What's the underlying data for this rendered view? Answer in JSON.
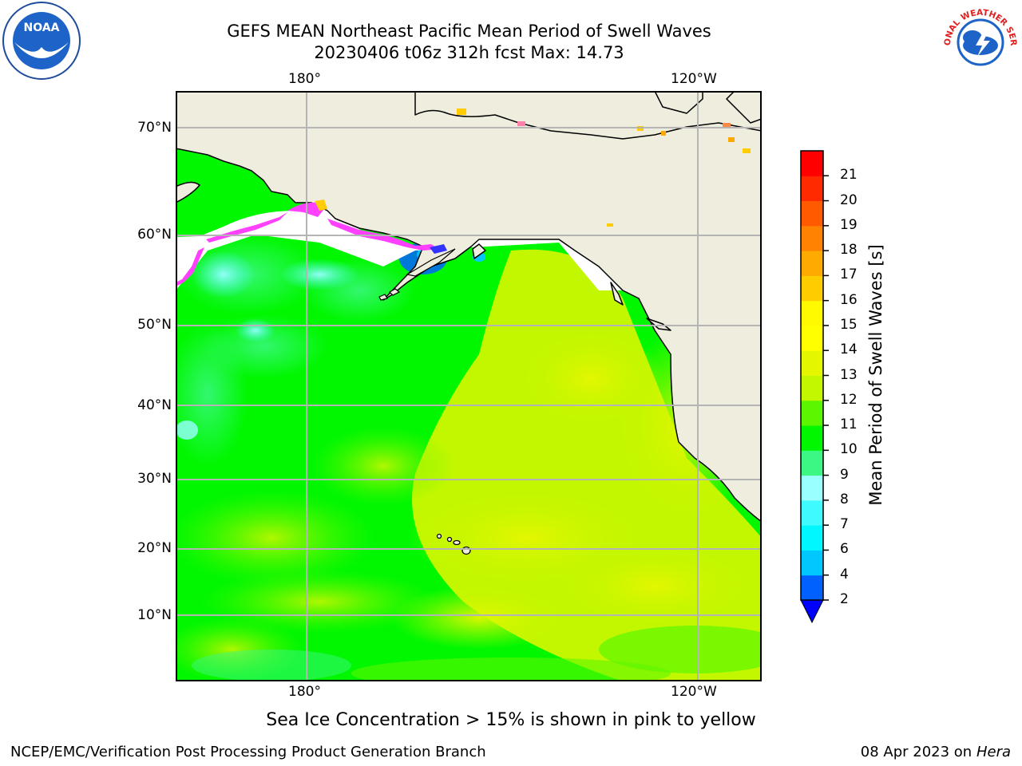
{
  "title": {
    "line1": "GEFS MEAN Northeast Pacific Mean Period of Swell Waves",
    "line2": "20230406 t06z 312h fcst   Max: 14.73"
  },
  "map": {
    "lon_labels": [
      "180°",
      "120°W"
    ],
    "lat_labels": [
      "70°N",
      "60°N",
      "50°N",
      "40°N",
      "30°N",
      "20°N",
      "10°N"
    ],
    "colors": {
      "land": "#efedde",
      "grid": "#b4b4b4",
      "coast": "#000000",
      "ice": "#ffffff"
    }
  },
  "colorbar": {
    "title": "Mean Period of Swell Waves [s]",
    "levels": [
      "2",
      "4",
      "6",
      "7",
      "8",
      "9",
      "10",
      "11",
      "12",
      "13",
      "14",
      "15",
      "16",
      "17",
      "18",
      "19",
      "20",
      "21"
    ],
    "colors": [
      "#0061ff",
      "#00c8ff",
      "#00f7ff",
      "#3ffaff",
      "#99ffff",
      "#3cf783",
      "#00f700",
      "#5cf700",
      "#c3f700",
      "#e5f700",
      "#ffff00",
      "#fffa00",
      "#ffcc00",
      "#ffaa00",
      "#ff8200",
      "#ff5a00",
      "#ff2a00",
      "#ff0000"
    ],
    "under_color": "#0000ff"
  },
  "logos": {
    "noaa": "NOAA",
    "nws": "NATIONAL WEATHER SERVICE"
  },
  "note": "Sea Ice Concentration > 15% is shown in pink to yellow",
  "footer": {
    "left": "NCEP/EMC/Verification Post Processing Product Generation Branch",
    "right_date": "08 Apr 2023 on",
    "right_system": "Hera"
  }
}
